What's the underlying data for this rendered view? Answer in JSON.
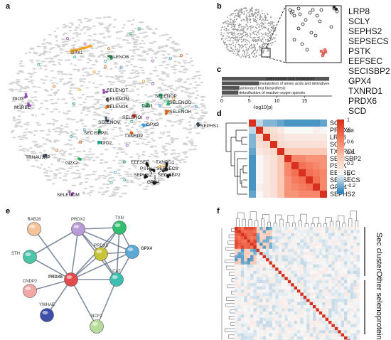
{
  "panels": {
    "a": {
      "label": "a",
      "genes": [
        {
          "name": "GPX1",
          "color": "#f39c12",
          "anchor": [
            108,
            71
          ]
        },
        {
          "name": "SELENOS",
          "color": "#27ae60",
          "anchor": [
            156,
            81
          ]
        },
        {
          "name": "SELENOT",
          "color": "#8e44ad",
          "anchor": [
            148,
            128
          ]
        },
        {
          "name": "SELENON",
          "color": "#555555",
          "anchor": [
            150,
            140
          ]
        },
        {
          "name": "SELENOK",
          "color": "#e67e22",
          "anchor": [
            150,
            151
          ]
        },
        {
          "name": "SELENOP",
          "color": "#27ae60",
          "anchor": [
            225,
            135
          ]
        },
        {
          "name": "DIO1",
          "color": "#27ae60",
          "anchor": [
            208,
            148
          ]
        },
        {
          "name": "SELENOO",
          "color": "#27ae60",
          "anchor": [
            236,
            145
          ]
        },
        {
          "name": "SELENOH",
          "color": "#d35400",
          "anchor": [
            235,
            158
          ]
        },
        {
          "name": "DIO3",
          "color": "#8e44ad",
          "anchor": [
            36,
            135
          ]
        },
        {
          "name": "MSRB1",
          "color": "#8e44ad",
          "anchor": [
            40,
            146
          ]
        },
        {
          "name": "SELENOV",
          "color": "#2c3e50",
          "anchor": [
            150,
            168
          ]
        },
        {
          "name": "SELENOI",
          "color": "#c0392b",
          "anchor": [
            188,
            164
          ]
        },
        {
          "name": "SECISBP2L",
          "color": "#27ae60",
          "anchor": [
            140,
            185
          ]
        },
        {
          "name": "TXNRD2",
          "color": "#d35400",
          "anchor": [
            185,
            187
          ]
        },
        {
          "name": "GPX3",
          "color": "#3498db",
          "anchor": [
            203,
            175
          ]
        },
        {
          "name": "SEPHS1",
          "color": "#2c3e50",
          "anchor": [
            280,
            175
          ]
        },
        {
          "name": "DIO2",
          "color": "#16a085",
          "anchor": [
            140,
            199
          ]
        },
        {
          "name": "TRNAU1AP",
          "color": "#2c3e50",
          "anchor": [
            64,
            218
          ]
        },
        {
          "name": "GPX2",
          "color": "#27ae60",
          "anchor": [
            112,
            225
          ]
        },
        {
          "name": "EEFSEC",
          "color": "#111111",
          "anchor": [
            206,
            232
          ]
        },
        {
          "name": "TXNRD1",
          "color": "#111111",
          "anchor": [
            234,
            232
          ]
        },
        {
          "name": "PSTK",
          "color": "#111111",
          "anchor": [
            215,
            239
          ]
        },
        {
          "name": "SEPSECS",
          "color": "#111111",
          "anchor": [
            232,
            239
          ]
        },
        {
          "name": "SEPHS2",
          "color": "#111111",
          "anchor": [
            205,
            248
          ]
        },
        {
          "name": "SECISBP2",
          "color": "#111111",
          "anchor": [
            238,
            248
          ]
        },
        {
          "name": "GPX4",
          "color": "#111111",
          "anchor": [
            218,
            257
          ]
        },
        {
          "name": "SELENOM",
          "color": "#8e44ad",
          "anchor": [
            100,
            272
          ]
        }
      ]
    },
    "b": {
      "label": "b"
    },
    "c": {
      "label": "c",
      "chart_data": {
        "type": "bar",
        "orientation": "horizontal",
        "categories": [
          "selenoamino acid metabolism",
          "metabolism of amino acids and derivatives",
          "aminoacyl trna biosynthesis",
          "detoxification of reactive oxygen species"
        ],
        "values": [
          19.5,
          6.8,
          3.2,
          3.0
        ],
        "xlabel": "-log10(p)",
        "xticks": [
          0,
          5,
          10,
          15
        ],
        "xlim": [
          0,
          20
        ],
        "bar_color": "#555555"
      }
    },
    "gene_list": [
      "LRP8",
      "SCLY",
      "SEPHS2",
      "SEPSECS",
      "PSTK",
      "EEFSEC",
      "SECISBP2",
      "GPX4",
      "TXNRD1",
      "PRDX6",
      "SCD"
    ],
    "d": {
      "label": "d",
      "chart_data": {
        "type": "heatmap",
        "rows": [
          "SCD",
          "PRDX6",
          "LRP8",
          "SCLY",
          "TXNRD1",
          "SECISBP2",
          "PSTK",
          "EEFSEC",
          "SEPSECS",
          "GPX4",
          "SEPHS2"
        ],
        "values": [
          [
            1,
            -0.1,
            -0.2,
            -0.2,
            -0.25,
            -0.3,
            -0.3,
            -0.3,
            -0.3,
            -0.3,
            -0.25
          ],
          [
            -0.1,
            1,
            0.2,
            0.15,
            0.1,
            0.0,
            0.0,
            0.0,
            0.0,
            0.05,
            0.0
          ],
          [
            -0.2,
            0.2,
            1,
            0.2,
            0.15,
            0.1,
            0.1,
            0.1,
            0.1,
            0.1,
            0.1
          ],
          [
            -0.2,
            0.15,
            0.2,
            1,
            0.2,
            0.15,
            0.15,
            0.15,
            0.15,
            0.15,
            0.15
          ],
          [
            -0.25,
            0.1,
            0.15,
            0.2,
            1,
            0.3,
            0.3,
            0.3,
            0.3,
            0.3,
            0.3
          ],
          [
            -0.3,
            0.0,
            0.1,
            0.15,
            0.3,
            1,
            0.6,
            0.6,
            0.55,
            0.55,
            0.55
          ],
          [
            -0.3,
            0.0,
            0.1,
            0.15,
            0.3,
            0.6,
            1,
            0.7,
            0.65,
            0.6,
            0.55
          ],
          [
            -0.3,
            0.0,
            0.1,
            0.15,
            0.3,
            0.6,
            0.7,
            1,
            0.7,
            0.65,
            0.6
          ],
          [
            -0.3,
            0.0,
            0.1,
            0.15,
            0.3,
            0.55,
            0.65,
            0.7,
            1,
            0.7,
            0.6
          ],
          [
            -0.3,
            0.05,
            0.1,
            0.15,
            0.3,
            0.55,
            0.6,
            0.65,
            0.7,
            1,
            0.6
          ],
          [
            -0.25,
            0.0,
            0.1,
            0.15,
            0.3,
            0.55,
            0.55,
            0.6,
            0.6,
            0.6,
            1
          ]
        ],
        "colorbar_ticks": [
          1,
          0.8,
          0.6,
          0.4,
          0.2,
          0,
          -0.2
        ],
        "colors": {
          "high": "#d7301f",
          "mid": "#f7f7f7",
          "low": "#2b83ba"
        }
      }
    },
    "e": {
      "label": "e",
      "nodes": [
        {
          "name": "RAB28",
          "color": "#f2c29a",
          "bold": false
        },
        {
          "name": "PRDX2",
          "color": "#b79ad6",
          "bold": false
        },
        {
          "name": "TXN",
          "color": "#2fbf71",
          "bold": false
        },
        {
          "name": "STH",
          "color": "#4bc4a8",
          "bold": false
        },
        {
          "name": "PRDX5",
          "color": "#c8c43a",
          "bold": false
        },
        {
          "name": "GPX4",
          "color": "#5aa9d6",
          "bold": true
        },
        {
          "name": "PRDX6",
          "color": "#e24b4b",
          "bold": true
        },
        {
          "name": "CNDP2",
          "color": "#f3a6a6",
          "bold": false
        },
        {
          "name": "CAT",
          "color": "#3cbfb0",
          "bold": false
        },
        {
          "name": "YWHAE",
          "color": "#3d4fa8",
          "bold": false
        },
        {
          "name": "NCF2",
          "color": "#b5dc9a",
          "bold": false
        }
      ]
    },
    "f": {
      "label": "f",
      "side_labels": {
        "top": "Sec cluster",
        "bottom": "Other selenoproteins"
      }
    }
  }
}
